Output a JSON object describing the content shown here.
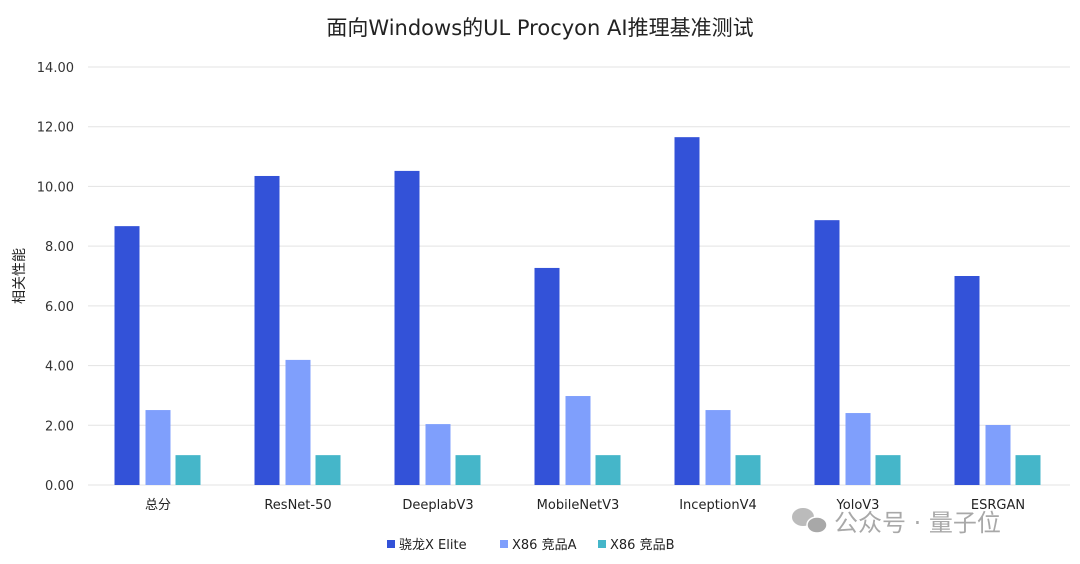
{
  "chart_data": {
    "type": "bar",
    "title": "面向Windows的UL Procyon AI推理基准测试",
    "xlabel": "",
    "ylabel": "相关性能",
    "ylim": [
      0,
      14
    ],
    "yticks": [
      "0.00",
      "2.00",
      "4.00",
      "6.00",
      "8.00",
      "10.00",
      "12.00",
      "14.00"
    ],
    "grid": true,
    "legend_position": "bottom",
    "categories": [
      "总分",
      "ResNet-50",
      "DeeplabV3",
      "MobileNetV3",
      "InceptionV4",
      "YoloV3",
      "ESRGAN"
    ],
    "series": [
      {
        "name": "骁龙X Elite",
        "color": "#3352d8",
        "values": [
          8.67,
          10.35,
          10.52,
          7.27,
          11.65,
          8.87,
          7.0
        ]
      },
      {
        "name": "X86 竞品A",
        "color": "#7f9ffc",
        "values": [
          2.51,
          4.19,
          2.04,
          2.98,
          2.51,
          2.41,
          2.01
        ]
      },
      {
        "name": "X86 竞品B",
        "color": "#45b6c9",
        "values": [
          1.0,
          1.0,
          1.0,
          1.0,
          1.0,
          1.0,
          1.0
        ]
      }
    ]
  },
  "watermark": "公众号 · 量子位"
}
